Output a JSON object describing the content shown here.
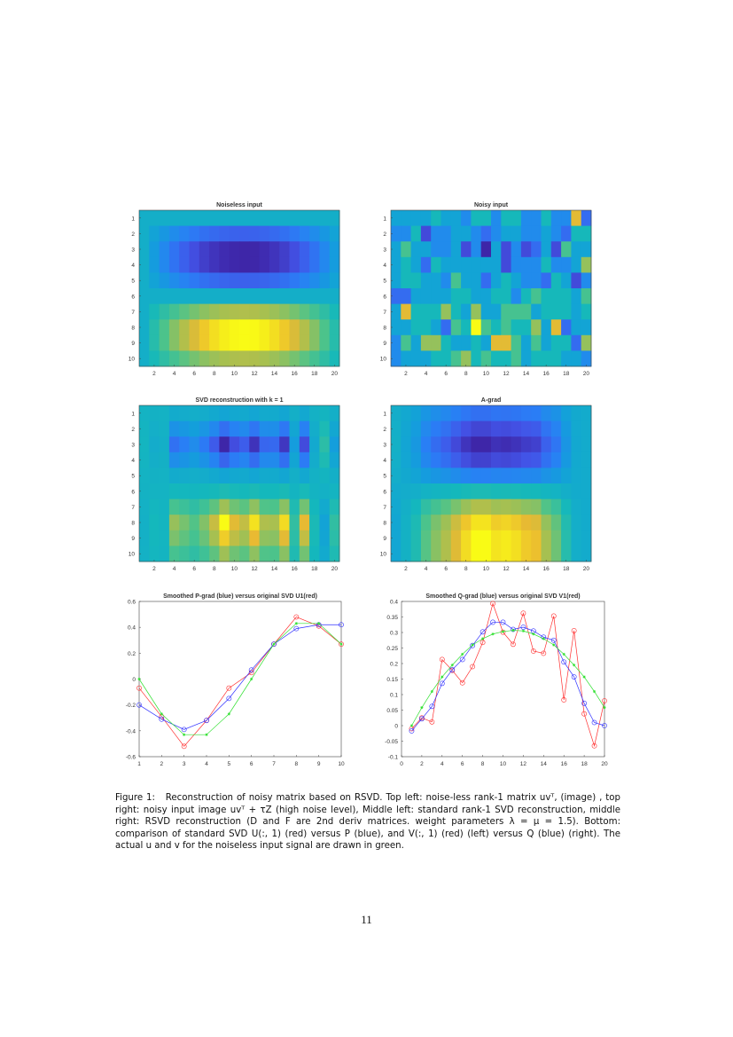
{
  "figure": {
    "heatmaps": [
      {
        "title": "Noiseless input",
        "rows": 10,
        "cols": 20,
        "y_ticks": [
          "1",
          "2",
          "3",
          "4",
          "5",
          "6",
          "7",
          "8",
          "9",
          "10"
        ],
        "x_ticks": [
          "2",
          "4",
          "6",
          "8",
          "10",
          "12",
          "14",
          "16",
          "18",
          "20"
        ],
        "colormap": "parula",
        "row_vector": [
          0,
          -0.27,
          -0.43,
          -0.43,
          -0.27,
          0,
          0.27,
          0.43,
          0.43,
          0.27
        ],
        "col_vector": [
          0,
          0.058,
          0.11,
          0.157,
          0.195,
          0.23,
          0.26,
          0.28,
          0.295,
          0.303,
          0.307,
          0.305,
          0.295,
          0.28,
          0.26,
          0.23,
          0.195,
          0.157,
          0.11,
          0.058
        ]
      },
      {
        "title": "Noisy input",
        "rows": 10,
        "cols": 20,
        "y_ticks": [
          "1",
          "2",
          "3",
          "4",
          "5",
          "6",
          "7",
          "8",
          "9",
          "10"
        ],
        "x_ticks": [
          "2",
          "4",
          "6",
          "8",
          "10",
          "12",
          "14",
          "16",
          "18",
          "20"
        ],
        "colormap": "parula",
        "grid_levels_0_to_9": [
          [
            4,
            4,
            4,
            4,
            5,
            4,
            4,
            3,
            5,
            5,
            3,
            5,
            5,
            3,
            3,
            5,
            3,
            3,
            8,
            2
          ],
          [
            3,
            3,
            5,
            1,
            3,
            3,
            4,
            4,
            3,
            2,
            3,
            4,
            4,
            3,
            3,
            4,
            3,
            2,
            5,
            5
          ],
          [
            4,
            6,
            4,
            4,
            3,
            3,
            4,
            1,
            3,
            0,
            4,
            1,
            3,
            1,
            2,
            4,
            1,
            6,
            4,
            4
          ],
          [
            4,
            5,
            4,
            2,
            5,
            4,
            4,
            4,
            4,
            4,
            4,
            1,
            3,
            3,
            3,
            5,
            3,
            3,
            4,
            7
          ],
          [
            4,
            5,
            5,
            4,
            4,
            3,
            6,
            4,
            4,
            2,
            4,
            5,
            4,
            3,
            3,
            2,
            5,
            4,
            1,
            3
          ],
          [
            2,
            2,
            4,
            4,
            4,
            4,
            5,
            5,
            4,
            4,
            5,
            5,
            3,
            5,
            6,
            5,
            5,
            5,
            4,
            6
          ],
          [
            4,
            8,
            5,
            5,
            5,
            7,
            5,
            4,
            7,
            4,
            4,
            6,
            6,
            6,
            4,
            5,
            5,
            5,
            4,
            5
          ],
          [
            4,
            4,
            5,
            5,
            4,
            2,
            6,
            5,
            9,
            6,
            5,
            6,
            5,
            5,
            7,
            4,
            8,
            2,
            4,
            4
          ],
          [
            3,
            6,
            4,
            7,
            7,
            5,
            4,
            4,
            5,
            4,
            8,
            8,
            6,
            4,
            6,
            4,
            5,
            5,
            2,
            7
          ],
          [
            3,
            4,
            4,
            4,
            5,
            5,
            6,
            7,
            5,
            6,
            5,
            5,
            6,
            4,
            5,
            5,
            5,
            4,
            4,
            3
          ]
        ]
      },
      {
        "title": "SVD reconstruction with k = 1",
        "rows": 10,
        "cols": 20,
        "y_ticks": [
          "1",
          "2",
          "3",
          "4",
          "5",
          "6",
          "7",
          "8",
          "9",
          "10"
        ],
        "x_ticks": [
          "2",
          "4",
          "6",
          "8",
          "10",
          "12",
          "14",
          "16",
          "18",
          "20"
        ],
        "colormap": "parula",
        "row_vector": [
          -0.07,
          -0.29,
          -0.52,
          -0.32,
          -0.07,
          0.05,
          0.27,
          0.48,
          0.41,
          0.27
        ],
        "col_vector": [
          -0.01,
          0.025,
          0.012,
          0.213,
          0.178,
          0.138,
          0.19,
          0.268,
          0.393,
          0.301,
          0.262,
          0.362,
          0.24,
          0.233,
          0.353,
          0.083,
          0.306,
          0.038,
          -0.065,
          0.08
        ]
      },
      {
        "title": "A-grad",
        "rows": 10,
        "cols": 20,
        "y_ticks": [
          "1",
          "2",
          "3",
          "4",
          "5",
          "6",
          "7",
          "8",
          "9",
          "10"
        ],
        "x_ticks": [
          "2",
          "4",
          "6",
          "8",
          "10",
          "12",
          "14",
          "16",
          "18",
          "20"
        ],
        "colormap": "parula",
        "row_vector": [
          -0.2,
          -0.31,
          -0.39,
          -0.32,
          -0.15,
          0.07,
          0.27,
          0.39,
          0.42,
          0.42
        ],
        "col_vector": [
          -0.017,
          0.022,
          0.062,
          0.136,
          0.18,
          0.213,
          0.258,
          0.302,
          0.333,
          0.333,
          0.31,
          0.317,
          0.305,
          0.285,
          0.275,
          0.205,
          0.157,
          0.072,
          0.01,
          0.0
        ]
      }
    ]
  },
  "chart_data": [
    {
      "type": "line",
      "title": "Smoothed P-grad (blue) versus original SVD U1(red)",
      "x": [
        1,
        2,
        3,
        4,
        5,
        6,
        7,
        8,
        9,
        10
      ],
      "xlim": [
        1,
        10
      ],
      "ylim": [
        -0.6,
        0.6
      ],
      "x_ticks": [
        "1",
        "2",
        "3",
        "4",
        "5",
        "6",
        "7",
        "8",
        "9",
        "10"
      ],
      "y_ticks": [
        "-0.6",
        "-0.4",
        "-0.2",
        "0",
        "0.2",
        "0.4",
        "0.6"
      ],
      "grid": false,
      "series": [
        {
          "color": "#ff3030",
          "marker": "circle",
          "values": [
            -0.07,
            -0.29,
            -0.52,
            -0.32,
            -0.07,
            0.05,
            0.27,
            0.48,
            0.41,
            0.27
          ]
        },
        {
          "color": "#3030ff",
          "marker": "circle",
          "values": [
            -0.2,
            -0.31,
            -0.39,
            -0.32,
            -0.15,
            0.07,
            0.27,
            0.39,
            0.42,
            0.42
          ]
        },
        {
          "color": "#30e030",
          "marker": "asterisk",
          "values": [
            0,
            -0.27,
            -0.43,
            -0.43,
            -0.27,
            0,
            0.27,
            0.43,
            0.43,
            0.27
          ]
        }
      ]
    },
    {
      "type": "line",
      "title": "Smoothed Q-grad (blue) versus original SVD V1(red)",
      "x": [
        1,
        2,
        3,
        4,
        5,
        6,
        7,
        8,
        9,
        10,
        11,
        12,
        13,
        14,
        15,
        16,
        17,
        18,
        19,
        20
      ],
      "xlim": [
        0,
        20
      ],
      "ylim": [
        -0.1,
        0.4
      ],
      "x_ticks": [
        "0",
        "2",
        "4",
        "6",
        "8",
        "10",
        "12",
        "14",
        "16",
        "18",
        "20"
      ],
      "y_ticks": [
        "-0.1",
        "-0.05",
        "0",
        "0.05",
        "0.1",
        "0.15",
        "0.2",
        "0.25",
        "0.3",
        "0.35",
        "0.4"
      ],
      "grid": false,
      "series": [
        {
          "color": "#ff3030",
          "marker": "circle",
          "values": [
            -0.01,
            0.025,
            0.012,
            0.213,
            0.178,
            0.138,
            0.19,
            0.268,
            0.393,
            0.301,
            0.262,
            0.362,
            0.24,
            0.233,
            0.353,
            0.083,
            0.306,
            0.038,
            -0.065,
            0.08
          ]
        },
        {
          "color": "#3030ff",
          "marker": "circle",
          "values": [
            -0.017,
            0.022,
            0.062,
            0.136,
            0.18,
            0.213,
            0.258,
            0.302,
            0.333,
            0.333,
            0.31,
            0.317,
            0.305,
            0.285,
            0.275,
            0.205,
            0.157,
            0.072,
            0.01,
            0.0
          ]
        },
        {
          "color": "#30e030",
          "marker": "asterisk",
          "values": [
            0,
            0.058,
            0.11,
            0.157,
            0.195,
            0.23,
            0.26,
            0.28,
            0.295,
            0.303,
            0.307,
            0.305,
            0.295,
            0.28,
            0.26,
            0.23,
            0.195,
            0.157,
            0.11,
            0.058
          ]
        }
      ]
    }
  ],
  "caption": {
    "label": "Figure 1:",
    "text": "Reconstruction of noisy matrix based on RSVD. Top left: noise-less rank-1 matrix uvᵀ, (image) , top right: noisy input image uvᵀ + τZ (high noise level), Middle left: standard rank-1 SVD reconstruction, middle right: RSVD reconstruction (D and F are 2nd deriv matrices. weight parameters λ = μ = 1.5). Bottom: comparison of standard SVD U(:, 1) (red) versus P (blue), and V(:, 1) (red) (left) versus Q (blue) (right). The actual u and v for the noiseless input signal are drawn in green."
  },
  "page_number": "11"
}
